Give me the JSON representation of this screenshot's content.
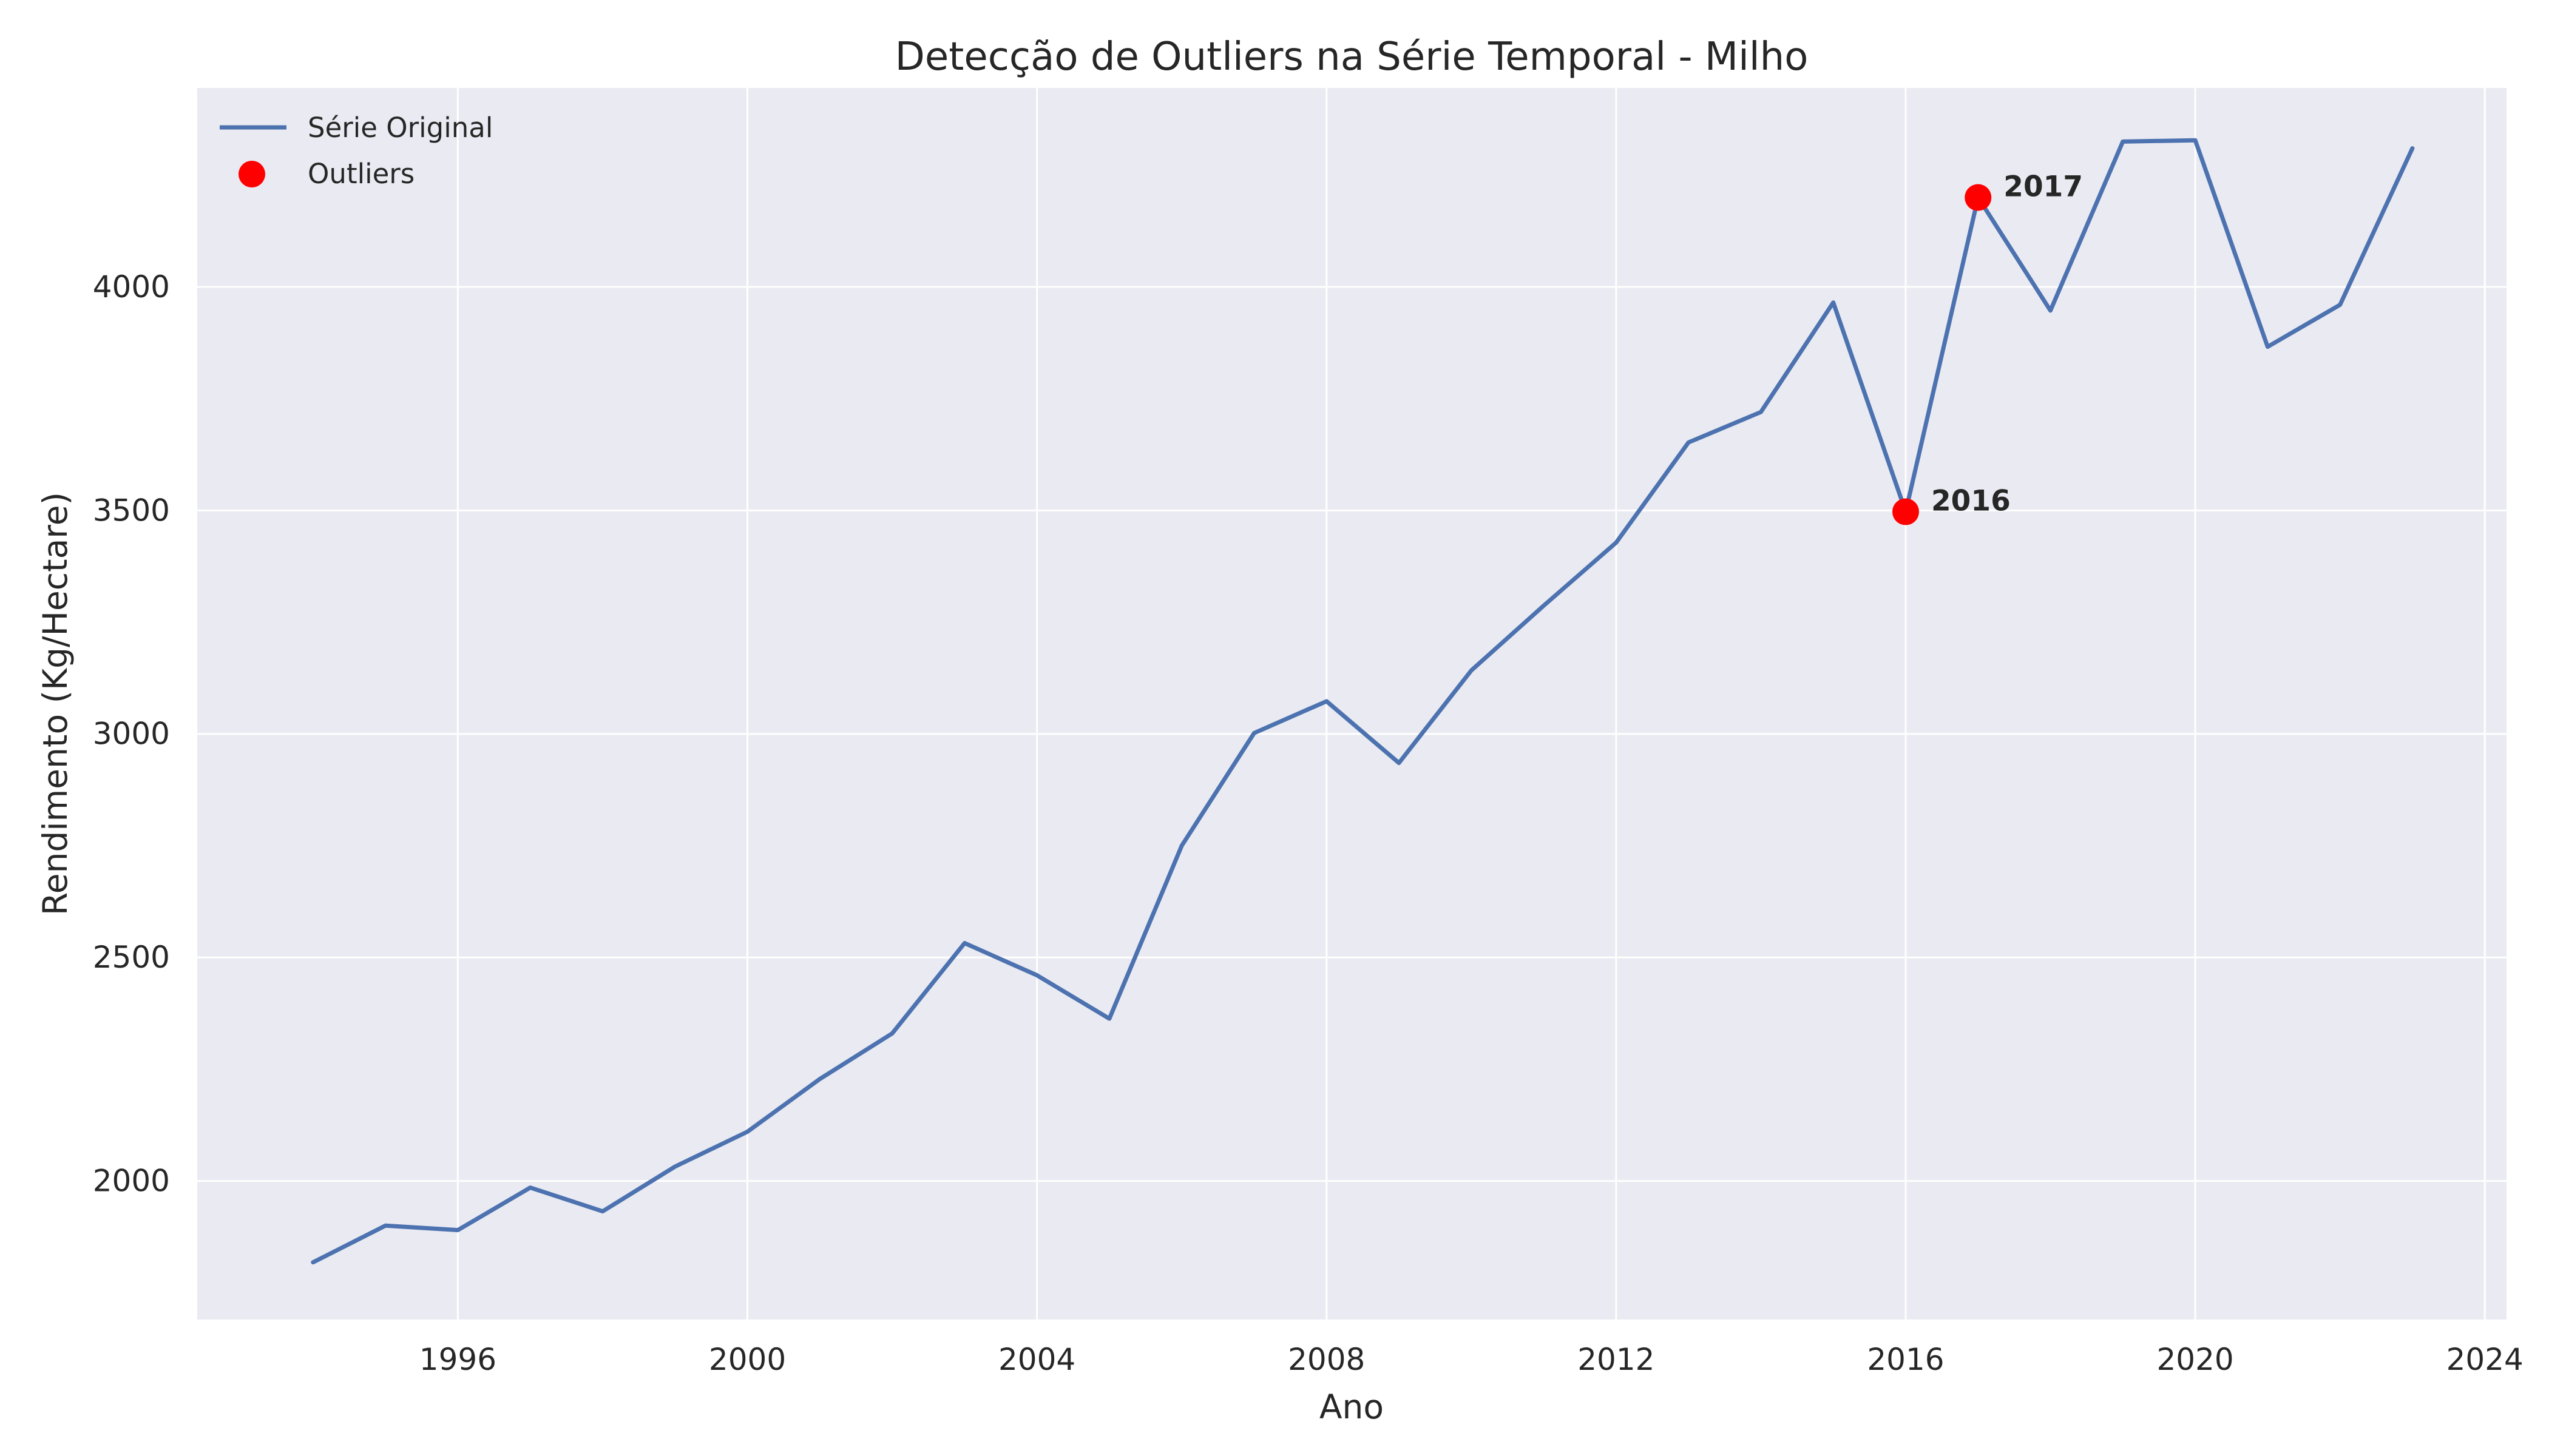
{
  "chart_data": {
    "type": "line",
    "title": "Detecção de Outliers na Série Temporal - Milho",
    "xlabel": "Ano",
    "ylabel": "Rendimento (Kg/Hectare)",
    "xlim": [
      1992.4,
      2024.3
    ],
    "ylim": [
      1690,
      4445
    ],
    "x_ticks": [
      1996,
      2000,
      2004,
      2008,
      2012,
      2016,
      2020,
      2024
    ],
    "y_ticks": [
      2000,
      2500,
      3000,
      3500,
      4000
    ],
    "grid": true,
    "legend_position": "top-left",
    "series": [
      {
        "name": "Série Original",
        "color": "#4c72b0",
        "x": [
          1994,
          1995,
          1996,
          1997,
          1998,
          1999,
          2000,
          2001,
          2002,
          2003,
          2004,
          2005,
          2006,
          2007,
          2008,
          2009,
          2010,
          2011,
          2012,
          2013,
          2014,
          2015,
          2016,
          2017,
          2018,
          2019,
          2020,
          2021,
          2022,
          2023
        ],
        "y": [
          1818,
          1900,
          1890,
          1985,
          1932,
          2032,
          2110,
          2228,
          2330,
          2532,
          2460,
          2363,
          2750,
          3002,
          3073,
          2935,
          3142,
          3287,
          3428,
          3652,
          3720,
          3965,
          3497,
          4200,
          3947,
          4325,
          4328,
          3866,
          3960,
          4310
        ]
      },
      {
        "name": "Outliers",
        "color": "#ff0000",
        "x": [
          2016,
          2017
        ],
        "y": [
          3497,
          4200
        ]
      }
    ],
    "annotations": [
      {
        "text": "2016",
        "x": 2016,
        "y": 3497
      },
      {
        "text": "2017",
        "x": 2017,
        "y": 4200
      }
    ]
  }
}
